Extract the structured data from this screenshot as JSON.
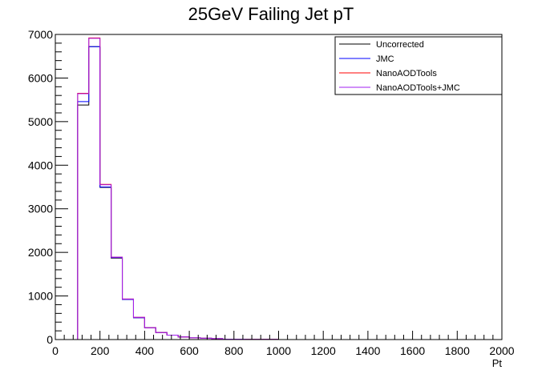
{
  "chart_data": {
    "type": "line",
    "title": "25GeV Failing Jet pT",
    "xlabel": "Pt",
    "ylabel": "",
    "xlim": [
      0,
      2000
    ],
    "ylim": [
      0,
      7000
    ],
    "bin_width": 50,
    "grid": false,
    "legend_position": "top-right",
    "x_ticks": [
      0,
      200,
      400,
      600,
      800,
      1000,
      1200,
      1400,
      1600,
      1800,
      2000
    ],
    "y_ticks": [
      0,
      1000,
      2000,
      3000,
      4000,
      5000,
      6000,
      7000
    ],
    "x_tick_labels": [
      "0",
      "200",
      "400",
      "600",
      "800",
      "1000",
      "1200",
      "1400",
      "1600",
      "1800",
      "2000"
    ],
    "y_tick_labels": [
      "0",
      "1000",
      "2000",
      "3000",
      "4000",
      "5000",
      "6000",
      "7000"
    ],
    "bin_edges": [
      0,
      50,
      100,
      150,
      200,
      250,
      300,
      350,
      400,
      450,
      500,
      550,
      600,
      650,
      700,
      750,
      800,
      850,
      900,
      950,
      1000,
      1050,
      1100,
      1150,
      1200,
      1250,
      1300,
      1350,
      1400,
      1450,
      1500,
      1550,
      1600,
      1650,
      1700,
      1750,
      1800,
      1850,
      1900,
      1950,
      2000
    ],
    "series": [
      {
        "name": "Uncorrected",
        "color": "#000000",
        "values": [
          0,
          0,
          5380,
          6720,
          3490,
          1870,
          920,
          500,
          270,
          160,
          100,
          60,
          40,
          30,
          20,
          10,
          10,
          5,
          5,
          5,
          0,
          0,
          0,
          0,
          0,
          0,
          0,
          0,
          0,
          0,
          0,
          0,
          0,
          0,
          0,
          0,
          0,
          0,
          0,
          0
        ]
      },
      {
        "name": "JMC",
        "color": "#0000ff",
        "values": [
          0,
          0,
          5460,
          6720,
          3500,
          1880,
          920,
          500,
          270,
          160,
          100,
          60,
          40,
          30,
          20,
          10,
          10,
          5,
          5,
          5,
          0,
          0,
          0,
          0,
          0,
          0,
          0,
          0,
          0,
          0,
          0,
          0,
          0,
          0,
          0,
          0,
          0,
          0,
          0,
          0
        ]
      },
      {
        "name": "NanoAODTools",
        "color": "#ff0000",
        "values": [
          0,
          0,
          5650,
          6920,
          3560,
          1890,
          930,
          510,
          270,
          160,
          100,
          60,
          40,
          30,
          20,
          10,
          10,
          5,
          5,
          5,
          0,
          0,
          0,
          0,
          0,
          0,
          0,
          0,
          0,
          0,
          0,
          0,
          0,
          0,
          0,
          0,
          0,
          0,
          0,
          0
        ]
      },
      {
        "name": "NanoAODTools+JMC",
        "color": "#a020f0",
        "values": [
          0,
          0,
          5640,
          6910,
          3550,
          1890,
          930,
          510,
          270,
          160,
          100,
          60,
          40,
          30,
          20,
          10,
          10,
          5,
          5,
          5,
          0,
          0,
          0,
          0,
          0,
          0,
          0,
          0,
          0,
          0,
          0,
          0,
          0,
          0,
          0,
          0,
          0,
          0,
          0,
          0
        ]
      }
    ]
  }
}
